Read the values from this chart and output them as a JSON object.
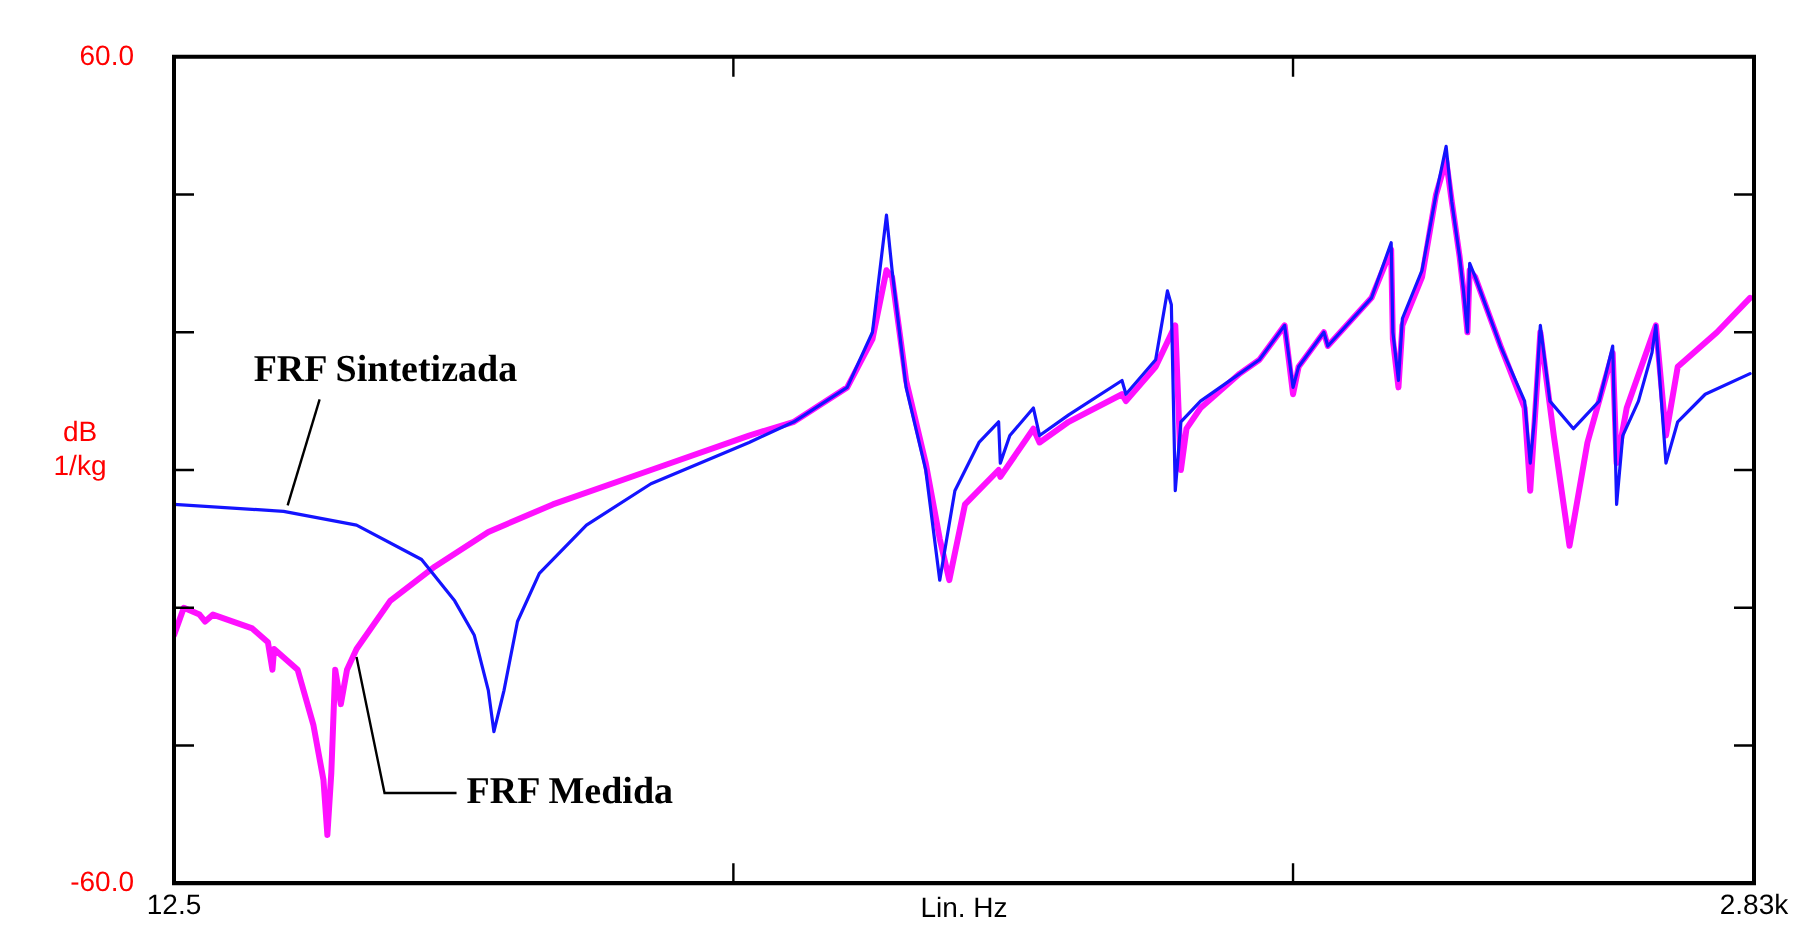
{
  "chart_data": {
    "type": "line",
    "xlabel": "Lin. Hz",
    "ylabel": "dB\n1/kg",
    "xlim": [
      12.5,
      2830
    ],
    "xticks": [
      {
        "value": 12.5,
        "label": "12.5"
      },
      {
        "value": 1010,
        "label": null
      },
      {
        "value": 2008,
        "label": null
      },
      {
        "value": 2830,
        "label": "2.83k"
      }
    ],
    "ylim": [
      -60,
      60
    ],
    "yticks": [
      {
        "value": -60,
        "label": "-60.0"
      },
      {
        "value": -40,
        "label": null
      },
      {
        "value": -20,
        "label": null
      },
      {
        "value": 0,
        "label": null
      },
      {
        "value": 20,
        "label": null
      },
      {
        "value": 40,
        "label": null
      },
      {
        "value": 60,
        "label": "60.0"
      }
    ],
    "annotations": [
      {
        "text": "FRF Sintetizada",
        "x": 208,
        "y": -6
      },
      {
        "text": "FRF Medida",
        "x": 338,
        "y": -26
      }
    ],
    "grid": false,
    "legend": false,
    "marker": "none",
    "line_style": "solid",
    "series": [
      {
        "color": "#1414ff",
        "x": [
          12.5,
          208,
          338,
          454,
          513,
          548,
          573,
          583,
          601,
          625,
          664,
          748,
          863,
          1038,
          1118,
          1213,
          1258,
          1283,
          1293,
          1318,
          1353,
          1378,
          1405,
          1448,
          1483,
          1486,
          1503,
          1545,
          1556,
          1608,
          1703,
          1710,
          1763,
          1784,
          1791,
          1798,
          1808,
          1843,
          1913,
          1948,
          1993,
          2008,
          2018,
          2063,
          2070,
          2148,
          2183,
          2186,
          2196,
          2203,
          2238,
          2263,
          2281,
          2291,
          2305,
          2312,
          2319,
          2323,
          2333,
          2378,
          2421,
          2431,
          2438,
          2449,
          2466,
          2508,
          2554,
          2578,
          2585,
          2596,
          2624,
          2648,
          2655,
          2673,
          2694,
          2743,
          2823
        ],
        "values": [
          -5,
          -6,
          -8,
          -13,
          -19,
          -24,
          -32,
          -38,
          -32,
          -22,
          -15,
          -8,
          -2,
          4,
          7,
          12,
          20,
          37,
          29,
          12,
          0,
          -16,
          -3,
          4,
          7,
          1,
          5,
          9,
          5,
          8,
          13,
          11,
          16,
          26,
          24,
          -3,
          7,
          10,
          14,
          16,
          21,
          12,
          15,
          20,
          18,
          25,
          33,
          20,
          13,
          22,
          29,
          40,
          47,
          39,
          31,
          26,
          20,
          30,
          28,
          18,
          10,
          1,
          7,
          21,
          10,
          6,
          10,
          18,
          -5,
          5,
          10,
          17,
          21,
          1,
          7,
          11,
          14
        ]
      },
      {
        "color": "#ff10ff",
        "x": [
          12.5,
          30,
          58,
          68,
          82,
          152,
          180,
          188,
          191,
          233,
          261,
          279,
          286,
          293,
          300,
          310,
          321,
          338,
          398,
          478,
          573,
          688,
          863,
          1038,
          1118,
          1213,
          1258,
          1283,
          1293,
          1318,
          1353,
          1378,
          1395,
          1423,
          1483,
          1486,
          1545,
          1556,
          1608,
          1703,
          1710,
          1763,
          1798,
          1808,
          1818,
          1843,
          1913,
          1948,
          1993,
          2008,
          2018,
          2063,
          2070,
          2148,
          2183,
          2186,
          2196,
          2203,
          2238,
          2263,
          2281,
          2291,
          2305,
          2312,
          2319,
          2323,
          2333,
          2378,
          2421,
          2431,
          2449,
          2473,
          2501,
          2533,
          2578,
          2585,
          2603,
          2655,
          2673,
          2694,
          2764,
          2823
        ],
        "values": [
          -24,
          -20,
          -21,
          -22,
          -21,
          -23,
          -25,
          -29,
          -26,
          -29,
          -37,
          -45,
          -53,
          -44,
          -29,
          -34,
          -29,
          -26,
          -19,
          -14,
          -9,
          -5,
          0,
          5,
          7,
          12,
          19,
          29,
          28,
          13,
          1,
          -10,
          -16,
          -5,
          0,
          -1,
          6,
          4,
          7,
          11,
          10,
          15,
          21,
          0,
          6,
          9,
          14,
          16,
          21,
          11,
          15,
          20,
          18,
          25,
          32,
          19,
          12,
          21,
          28,
          40,
          45,
          39,
          31,
          26,
          20,
          29,
          28,
          18,
          9,
          -3,
          20,
          5,
          -11,
          4,
          17,
          1,
          9,
          21,
          5,
          15,
          20,
          25
        ]
      }
    ]
  }
}
